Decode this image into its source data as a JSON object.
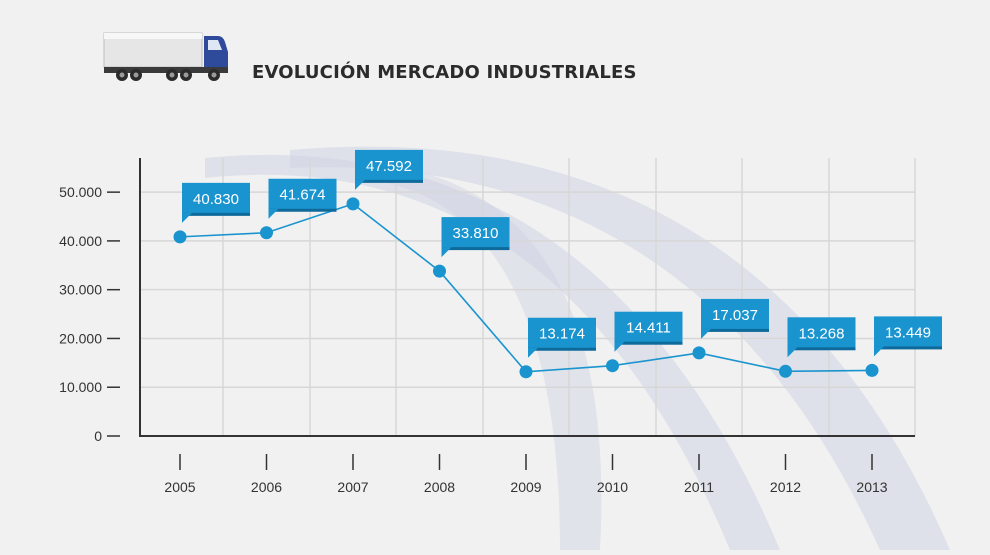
{
  "header": {
    "title": "EVOLUCIÓN MERCADO INDUSTRIALES",
    "icon": "truck-icon"
  },
  "colors": {
    "background": "#f1f1f1",
    "accent": "#1a94cf",
    "accent_dark": "#0e6a9b",
    "line": "#1a94cf",
    "grid": "#d7d7d7",
    "axis": "#333333",
    "decor": "#cfd3e3"
  },
  "chart_data": {
    "type": "line",
    "title": "EVOLUCIÓN MERCADO INDUSTRIALES",
    "xlabel": "",
    "ylabel": "",
    "categories": [
      "2005",
      "2006",
      "2007",
      "2008",
      "2009",
      "2010",
      "2011",
      "2012",
      "2013"
    ],
    "values": [
      40830,
      41674,
      47592,
      33810,
      13174,
      14411,
      17037,
      13268,
      13449
    ],
    "data_labels": [
      "40.830",
      "41.674",
      "47.592",
      "33.810",
      "13.174",
      "14.411",
      "17.037",
      "13.268",
      "13.449"
    ],
    "yticks": [
      0,
      10000,
      20000,
      30000,
      40000,
      50000
    ],
    "ytick_labels": [
      "0",
      "10.000",
      "20.000",
      "30.000",
      "40.000",
      "50.000"
    ],
    "ylim": [
      0,
      57000
    ],
    "grid": true,
    "legend": "none"
  }
}
